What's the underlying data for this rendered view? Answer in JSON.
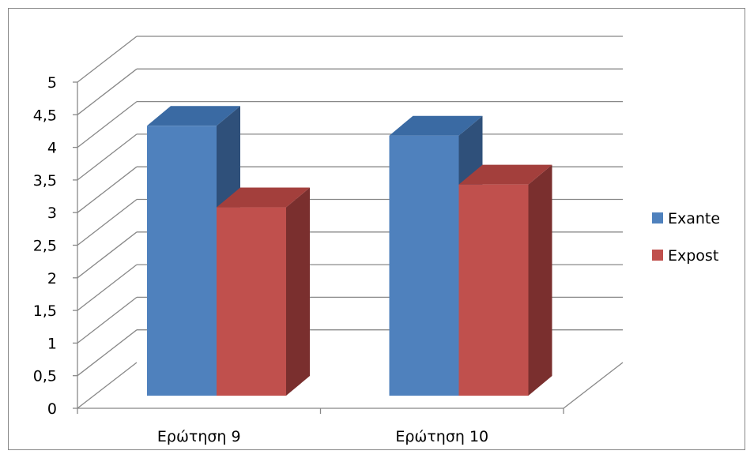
{
  "chart_data": {
    "type": "bar",
    "categories": [
      "Ερώτηση 9",
      "Ερώτηση 10"
    ],
    "series": [
      {
        "name": "Exante",
        "values": [
          4.5,
          4.35
        ]
      },
      {
        "name": "Expost",
        "values": [
          3.25,
          3.6
        ]
      }
    ],
    "ylim": [
      0,
      5
    ],
    "yticks": [
      "0",
      "0,5",
      "1",
      "1,5",
      "2",
      "2,5",
      "3",
      "3,5",
      "4",
      "4,5",
      "5"
    ],
    "grid": true,
    "legend_position": "right",
    "three_d": true
  },
  "colors": {
    "Exante": {
      "front": "#4f81bd",
      "top": "#3a6aa3",
      "side": "#2f507a"
    },
    "Expost": {
      "front": "#c0504d",
      "top": "#a33f3c",
      "side": "#7a2f2e"
    },
    "grid": "#888888",
    "frame": "#878787"
  }
}
